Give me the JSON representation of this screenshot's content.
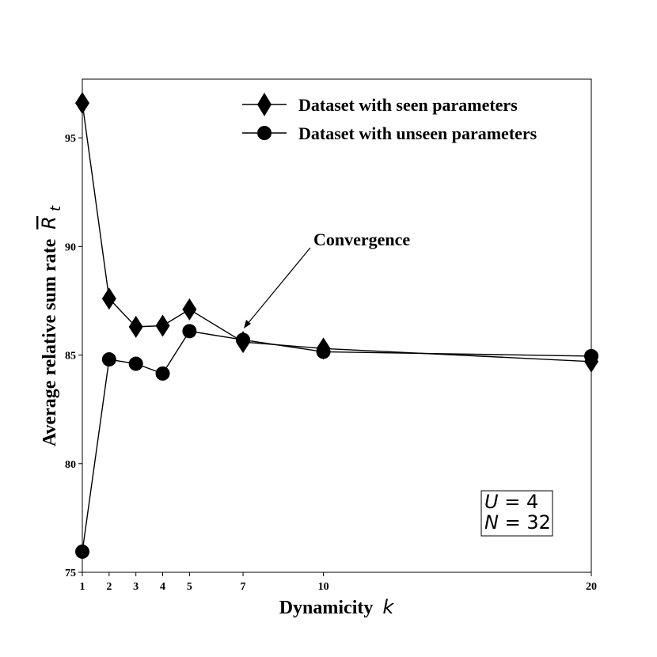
{
  "chart_data": {
    "type": "line",
    "xlabel": "Dynamicity",
    "xlabel_var": "k",
    "ylabel": "Average relative sum rate",
    "ylabel_var": "R",
    "ylabel_sub": "t",
    "xlim": [
      1,
      20
    ],
    "ylim": [
      75,
      97.7
    ],
    "xticks": [
      1,
      2,
      3,
      4,
      5,
      7,
      10,
      20
    ],
    "yticks": [
      75,
      80,
      85,
      90,
      95
    ],
    "grid": false,
    "legend_position": "top-right",
    "series": [
      {
        "name": "Dataset with seen parameters",
        "marker": "diamond",
        "color": "#000000",
        "x": [
          1,
          2,
          3,
          4,
          5,
          7,
          10,
          20
        ],
        "y": [
          96.6,
          87.6,
          86.3,
          86.35,
          87.1,
          85.6,
          85.3,
          84.7
        ]
      },
      {
        "name": "Dataset with unseen parameters",
        "marker": "circle",
        "color": "#000000",
        "x": [
          1,
          2,
          3,
          4,
          5,
          7,
          10,
          20
        ],
        "y": [
          75.95,
          84.8,
          84.6,
          84.15,
          86.1,
          85.7,
          85.15,
          84.95
        ]
      }
    ],
    "annotation": {
      "text": "Convergence",
      "target_x": 7,
      "target_y": 86.1
    },
    "textbox": {
      "line1_var": "U",
      "line1_eq": "= 4",
      "line2_var": "N",
      "line2_eq": "= 32"
    }
  }
}
